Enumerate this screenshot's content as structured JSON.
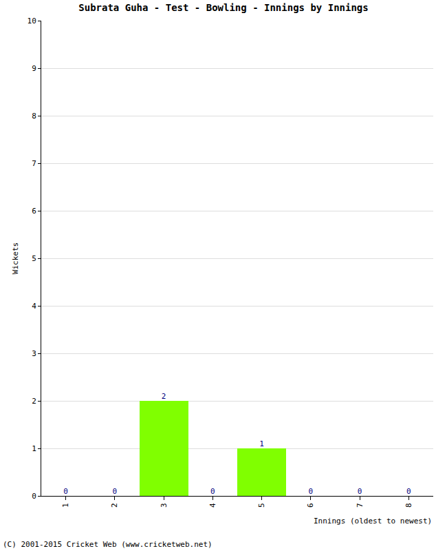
{
  "chart_data": {
    "type": "bar",
    "title": "Subrata Guha - Test - Bowling - Innings by Innings",
    "x_label": "Innings (oldest to newest)",
    "y_label": "Wickets",
    "categories": [
      "1",
      "2",
      "3",
      "4",
      "5",
      "6",
      "7",
      "8"
    ],
    "values": [
      0,
      0,
      2,
      0,
      1,
      0,
      0,
      0
    ],
    "color": "#80ff00",
    "ylim": [
      0,
      10
    ],
    "yticks": [
      0,
      1,
      2,
      3,
      4,
      5,
      6,
      7,
      8,
      9,
      10
    ],
    "grid": true,
    "data_labels": true,
    "annotations": [
      "(C) 2001-2015 Cricket Web (www.cricketweb.net)"
    ]
  }
}
